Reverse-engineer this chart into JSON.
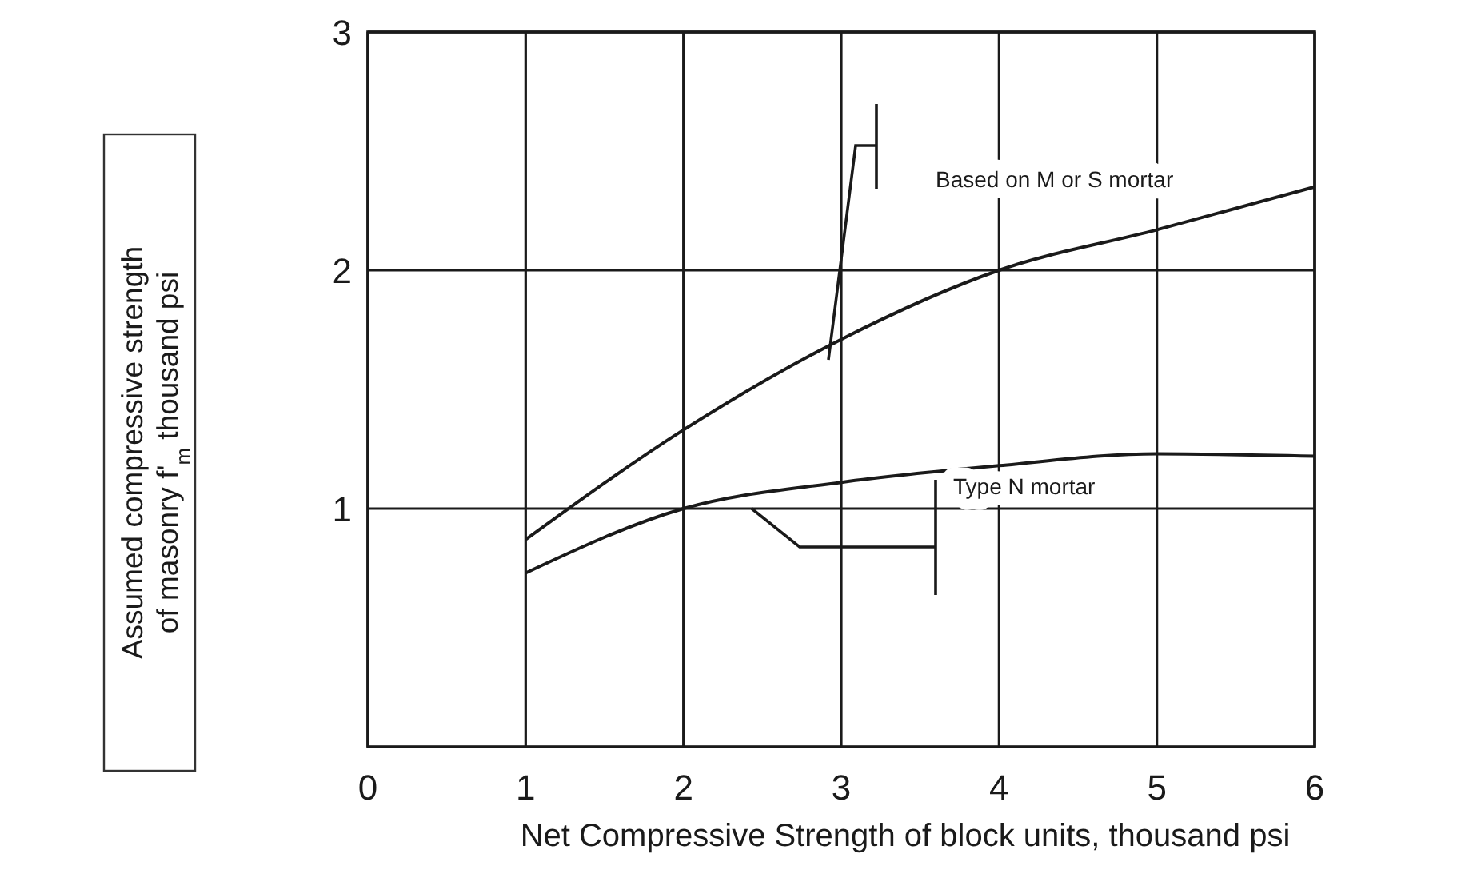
{
  "chart_data": {
    "type": "line",
    "xlabel": "Net Compressive Strength of block units, thousand psi",
    "ylabel": "Assumed compressive strength\nof masonry f'$_{m}$ thousand psi",
    "x": [
      1,
      2,
      3,
      4,
      5,
      6
    ],
    "series": [
      {
        "name": "Based on M or S mortar",
        "color": "#1a1a1a",
        "values": [
          0.87,
          1.33,
          1.71,
          2.0,
          2.17,
          2.35
        ]
      },
      {
        "name": "Type N mortar",
        "color": "#1a1a1a",
        "values": [
          0.73,
          1.0,
          1.11,
          1.18,
          1.23,
          1.22
        ]
      }
    ],
    "xlim": [
      0,
      6
    ],
    "xticks": [
      0,
      1,
      2,
      3,
      4,
      5,
      6
    ],
    "ylim": [
      0,
      3
    ],
    "yticks": [
      1,
      2,
      3
    ],
    "grid": true,
    "legend": false,
    "marker": "none",
    "line_style": "solid"
  }
}
